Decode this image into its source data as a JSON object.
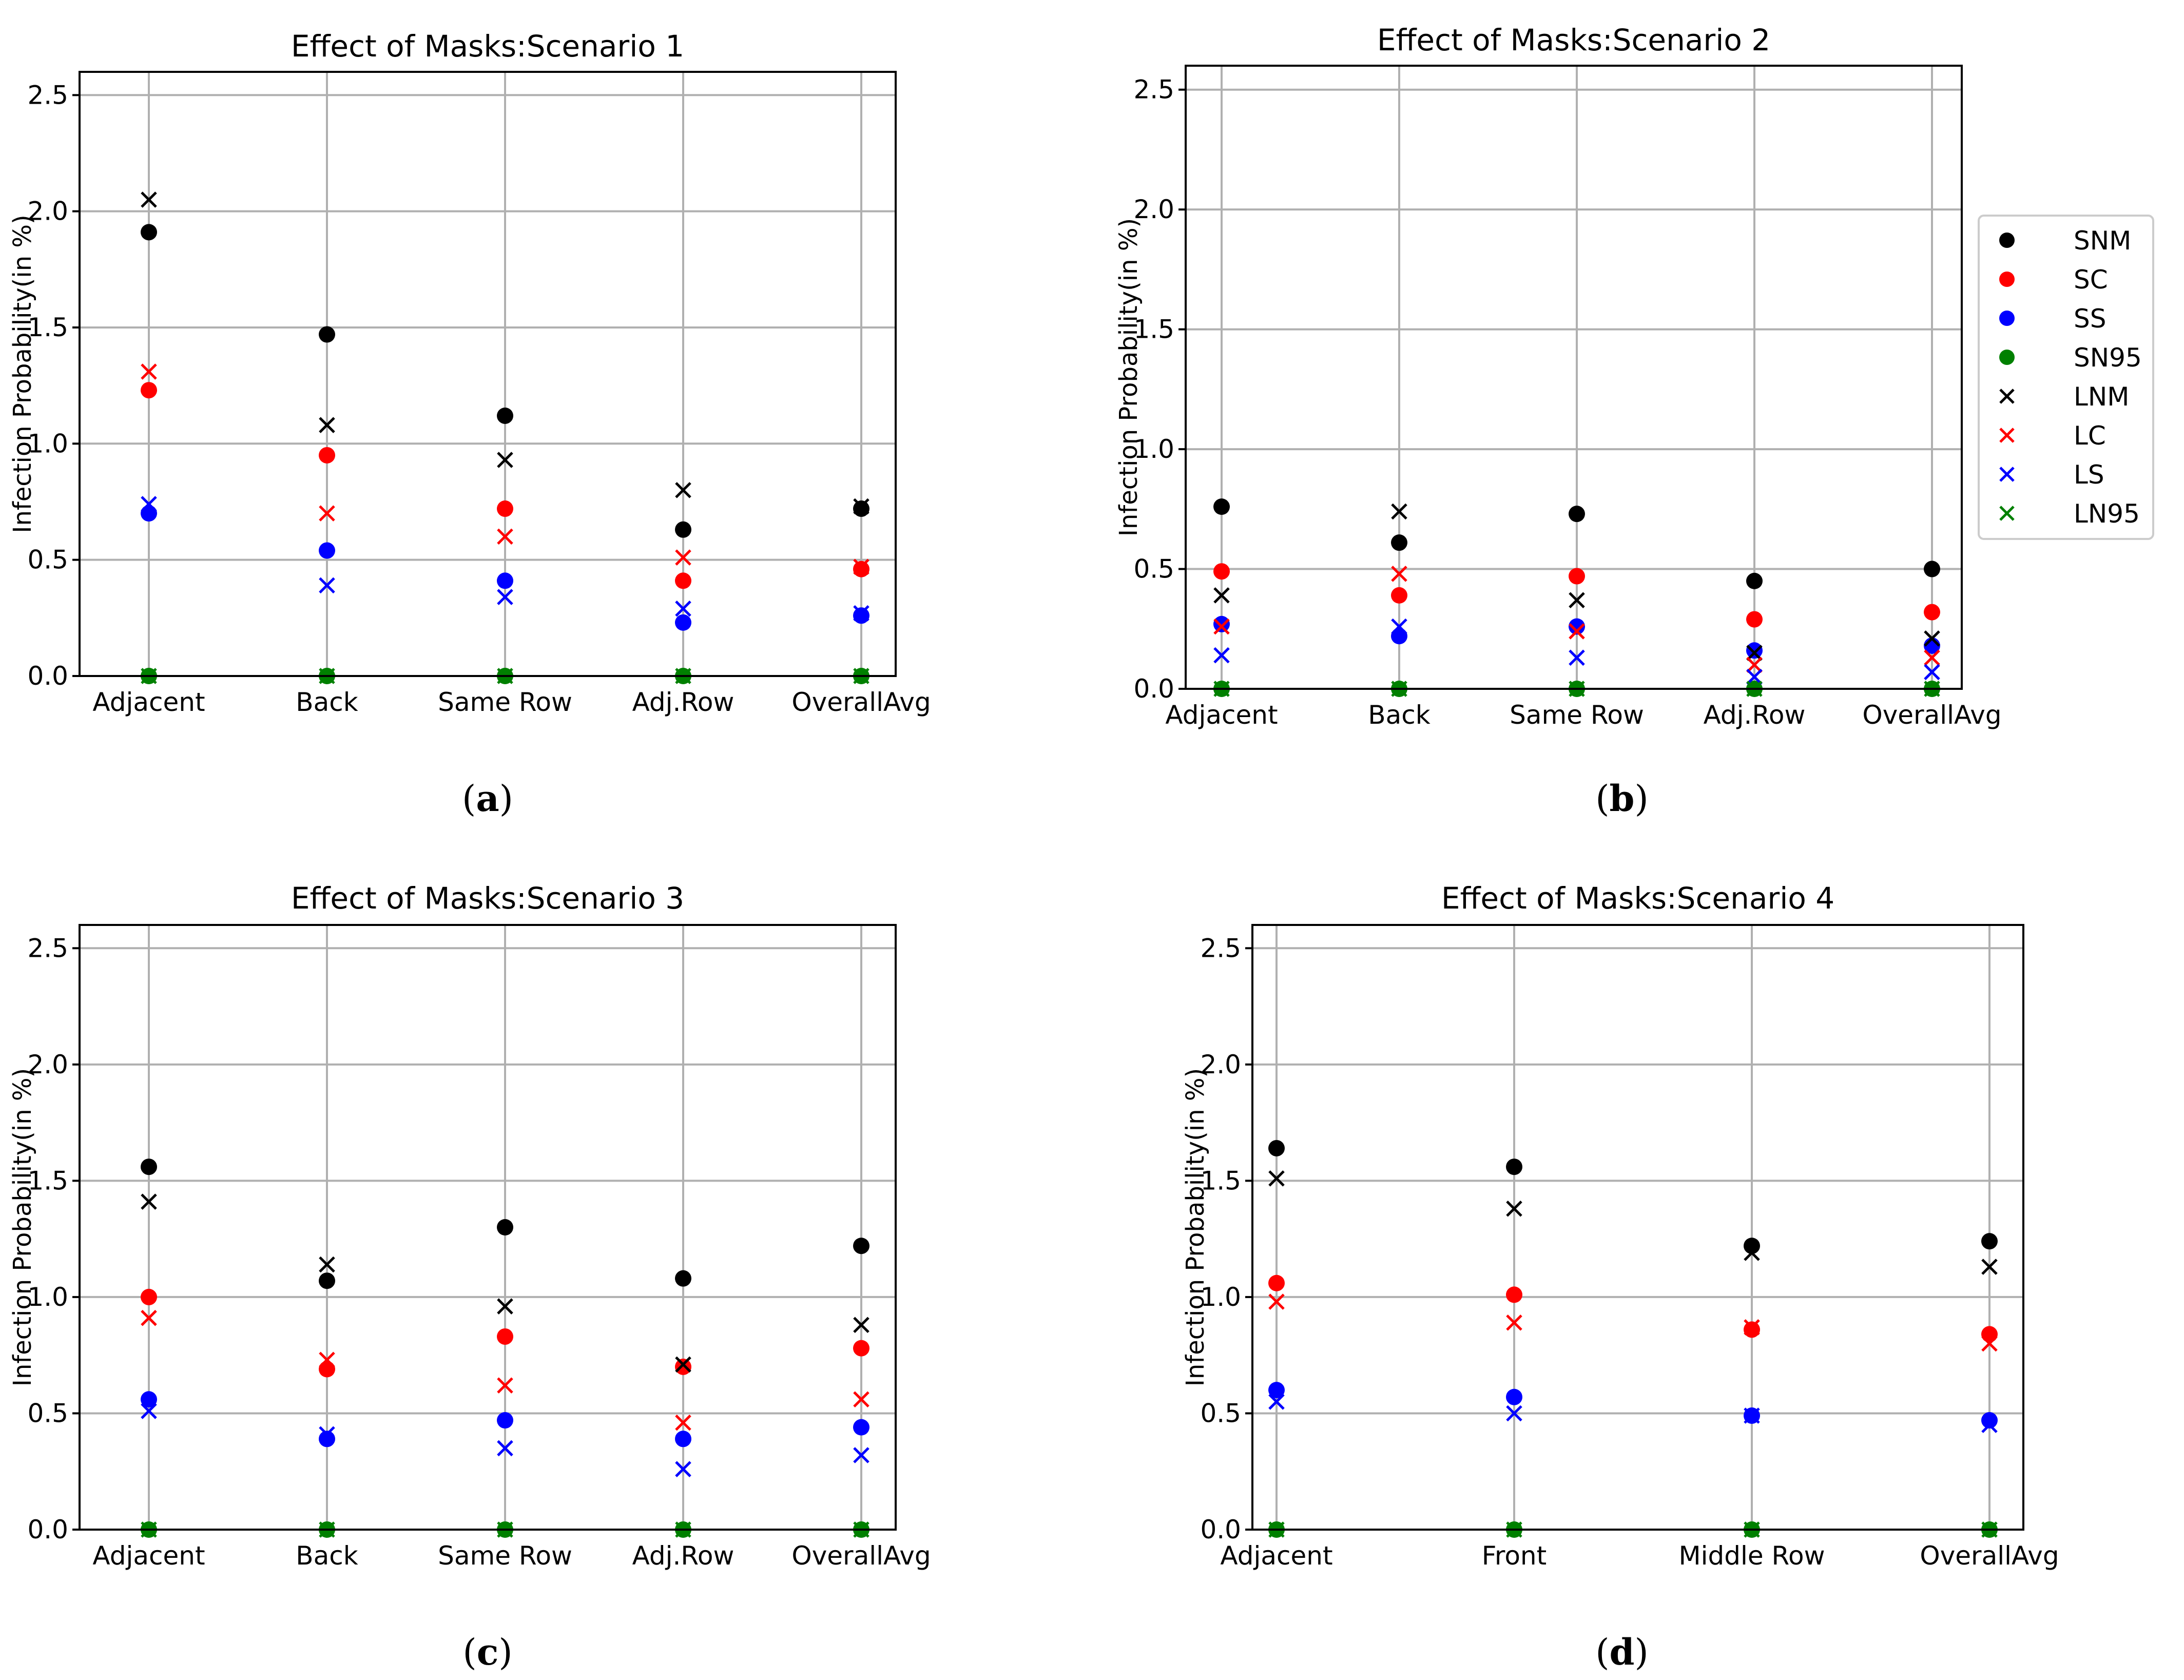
{
  "chart_data": [
    {
      "type": "scatter",
      "title": "Effect of Masks:Scenario 1",
      "caption": "a",
      "xlabel": "",
      "ylabel": "Infection Probability(in %)",
      "ylim": [
        0,
        2.6
      ],
      "yticks": [
        "0.0",
        "0.5",
        "1.0",
        "1.5",
        "2.0",
        "2.5"
      ],
      "categories": [
        "Adjacent",
        "Back",
        "Same Row",
        "Adj.Row",
        "OverallAvg"
      ],
      "grid": true,
      "series": [
        {
          "name": "SNM",
          "marker": "dot",
          "color": "#000000",
          "values": [
            1.91,
            1.47,
            1.12,
            0.63,
            0.72
          ]
        },
        {
          "name": "SC",
          "marker": "dot",
          "color": "#ff0000",
          "values": [
            1.23,
            0.95,
            0.72,
            0.41,
            0.46
          ]
        },
        {
          "name": "SS",
          "marker": "dot",
          "color": "#0000ff",
          "values": [
            0.7,
            0.54,
            0.41,
            0.23,
            0.26
          ]
        },
        {
          "name": "SN95",
          "marker": "dot",
          "color": "#008000",
          "values": [
            0.0,
            0.0,
            0.0,
            0.0,
            0.0
          ]
        },
        {
          "name": "LNM",
          "marker": "x",
          "color": "#000000",
          "values": [
            2.05,
            1.08,
            0.93,
            0.8,
            0.73
          ]
        },
        {
          "name": "LC",
          "marker": "x",
          "color": "#ff0000",
          "values": [
            1.31,
            0.7,
            0.6,
            0.51,
            0.47
          ]
        },
        {
          "name": "LS",
          "marker": "x",
          "color": "#0000ff",
          "values": [
            0.74,
            0.39,
            0.34,
            0.29,
            0.27
          ]
        },
        {
          "name": "LN95",
          "marker": "x",
          "color": "#008000",
          "values": [
            0.0,
            0.0,
            0.0,
            0.0,
            0.0
          ]
        }
      ]
    },
    {
      "type": "scatter",
      "title": "Effect of Masks:Scenario 2",
      "caption": "b",
      "xlabel": "",
      "ylabel": "Infection Probability(in %)",
      "ylim": [
        0,
        2.6
      ],
      "yticks": [
        "0.0",
        "0.5",
        "1.0",
        "1.5",
        "2.0",
        "2.5"
      ],
      "categories": [
        "Adjacent",
        "Back",
        "Same Row",
        "Adj.Row",
        "OverallAvg"
      ],
      "grid": true,
      "legend": "right",
      "series": [
        {
          "name": "SNM",
          "marker": "dot",
          "color": "#000000",
          "values": [
            0.76,
            0.61,
            0.73,
            0.45,
            0.5
          ]
        },
        {
          "name": "SC",
          "marker": "dot",
          "color": "#ff0000",
          "values": [
            0.49,
            0.39,
            0.47,
            0.29,
            0.32
          ]
        },
        {
          "name": "SS",
          "marker": "dot",
          "color": "#0000ff",
          "values": [
            0.27,
            0.22,
            0.26,
            0.16,
            0.18
          ]
        },
        {
          "name": "SN95",
          "marker": "dot",
          "color": "#008000",
          "values": [
            0.0,
            0.0,
            0.0,
            0.0,
            0.0
          ]
        },
        {
          "name": "LNM",
          "marker": "x",
          "color": "#000000",
          "values": [
            0.39,
            0.74,
            0.37,
            0.15,
            0.21
          ]
        },
        {
          "name": "LC",
          "marker": "x",
          "color": "#ff0000",
          "values": [
            0.26,
            0.48,
            0.24,
            0.1,
            0.13
          ]
        },
        {
          "name": "LS",
          "marker": "x",
          "color": "#0000ff",
          "values": [
            0.14,
            0.26,
            0.13,
            0.05,
            0.07
          ]
        },
        {
          "name": "LN95",
          "marker": "x",
          "color": "#008000",
          "values": [
            0.0,
            0.0,
            0.0,
            0.0,
            0.0
          ]
        }
      ]
    },
    {
      "type": "scatter",
      "title": "Effect of Masks:Scenario 3",
      "caption": "c",
      "xlabel": "",
      "ylabel": "Infection Probability(in %)",
      "ylim": [
        0,
        2.6
      ],
      "yticks": [
        "0.0",
        "0.5",
        "1.0",
        "1.5",
        "2.0",
        "2.5"
      ],
      "categories": [
        "Adjacent",
        "Back",
        "Same Row",
        "Adj.Row",
        "OverallAvg"
      ],
      "grid": true,
      "series": [
        {
          "name": "SNM",
          "marker": "dot",
          "color": "#000000",
          "values": [
            1.56,
            1.07,
            1.3,
            1.08,
            1.22
          ]
        },
        {
          "name": "SC",
          "marker": "dot",
          "color": "#ff0000",
          "values": [
            1.0,
            0.69,
            0.83,
            0.7,
            0.78
          ]
        },
        {
          "name": "SS",
          "marker": "dot",
          "color": "#0000ff",
          "values": [
            0.56,
            0.39,
            0.47,
            0.39,
            0.44
          ]
        },
        {
          "name": "SN95",
          "marker": "dot",
          "color": "#008000",
          "values": [
            0.0,
            0.0,
            0.0,
            0.0,
            0.0
          ]
        },
        {
          "name": "LNM",
          "marker": "x",
          "color": "#000000",
          "values": [
            1.41,
            1.14,
            0.96,
            0.71,
            0.88
          ]
        },
        {
          "name": "LC",
          "marker": "x",
          "color": "#ff0000",
          "values": [
            0.91,
            0.73,
            0.62,
            0.46,
            0.56
          ]
        },
        {
          "name": "LS",
          "marker": "x",
          "color": "#0000ff",
          "values": [
            0.51,
            0.41,
            0.35,
            0.26,
            0.32
          ]
        },
        {
          "name": "LN95",
          "marker": "x",
          "color": "#008000",
          "values": [
            0.0,
            0.0,
            0.0,
            0.0,
            0.0
          ]
        }
      ]
    },
    {
      "type": "scatter",
      "title": "Effect of Masks:Scenario 4",
      "caption": "d",
      "xlabel": "",
      "ylabel": "Infection Probability(in %)",
      "ylim": [
        0,
        2.6
      ],
      "yticks": [
        "0.0",
        "0.5",
        "1.0",
        "1.5",
        "2.0",
        "2.5"
      ],
      "categories": [
        "Adjacent",
        "Front",
        "Middle Row",
        "OverallAvg"
      ],
      "grid": true,
      "series": [
        {
          "name": "SNM",
          "marker": "dot",
          "color": "#000000",
          "values": [
            1.64,
            1.56,
            1.22,
            1.24
          ]
        },
        {
          "name": "SC",
          "marker": "dot",
          "color": "#ff0000",
          "values": [
            1.06,
            1.01,
            0.86,
            0.84
          ]
        },
        {
          "name": "SS",
          "marker": "dot",
          "color": "#0000ff",
          "values": [
            0.6,
            0.57,
            0.49,
            0.47
          ]
        },
        {
          "name": "SN95",
          "marker": "dot",
          "color": "#008000",
          "values": [
            0.0,
            0.0,
            0.0,
            0.0
          ]
        },
        {
          "name": "LNM",
          "marker": "x",
          "color": "#000000",
          "values": [
            1.51,
            1.38,
            1.19,
            1.13
          ]
        },
        {
          "name": "LC",
          "marker": "x",
          "color": "#ff0000",
          "values": [
            0.98,
            0.89,
            0.87,
            0.8
          ]
        },
        {
          "name": "LS",
          "marker": "x",
          "color": "#0000ff",
          "values": [
            0.55,
            0.5,
            0.49,
            0.45
          ]
        },
        {
          "name": "LN95",
          "marker": "x",
          "color": "#008000",
          "values": [
            0.0,
            0.0,
            0.0,
            0.0
          ]
        }
      ]
    }
  ]
}
